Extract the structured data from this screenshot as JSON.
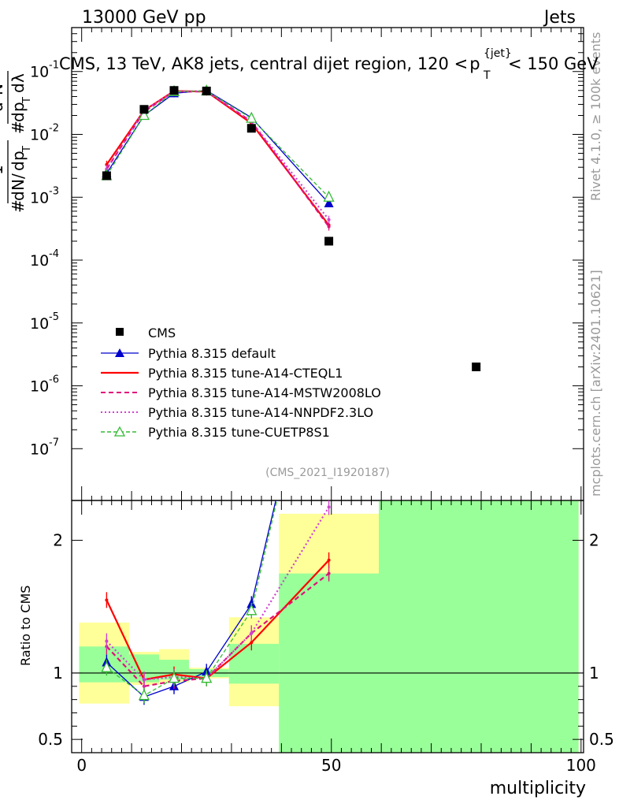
{
  "header": {
    "left": "13000 GeV pp",
    "right": "Jets"
  },
  "side_labels": {
    "rivet": "Rivet 4.1.0, ≥ 100k events",
    "mcplots": "mcplots.cern.ch [arXiv:2401.10621]"
  },
  "chart_data": {
    "type": "line",
    "title": "CMS, 13 TeV, AK8 jets, central dijet region, 120 < pT{jet} < 150 GeV",
    "title_main": "CMS, 13 TeV, AK8 jets, central dijet region, 120 <",
    "title_p": "p",
    "title_sub": "T",
    "title_sup": "{jet}",
    "title_end": "< 150 GeV",
    "analysis_id": "(CMS_2021_I1920187)",
    "xlabel": "multiplicity",
    "ylabel_main": "1/dN/dpT  dN/(dpT dλ)",
    "ylabel_ratio": "Ratio to CMS",
    "xlim": [
      -2,
      100.5
    ],
    "ylim": [
      1.5e-08,
      0.5
    ],
    "yscale": "log",
    "ratio_ylim": [
      0.4,
      2.3
    ],
    "x_ticks": [
      "0",
      "50",
      "100"
    ],
    "y_tick_exponents": [
      "-1",
      "-2",
      "-3",
      "-4",
      "-5",
      "-6",
      "-7"
    ],
    "ratio_ticks": [
      "0.5",
      "1",
      "2"
    ],
    "data": {
      "name": "CMS",
      "x": [
        5,
        12.5,
        18.5,
        25,
        34,
        49.5,
        79
      ],
      "y": [
        0.0022,
        0.025,
        0.05,
        0.049,
        0.0125,
        0.0002,
        2e-06
      ]
    },
    "series": [
      {
        "name": "Pythia 8.315 default",
        "color": "#0000cc",
        "style": "solid",
        "marker": "triangle-filled",
        "x": [
          5,
          12.5,
          18.5,
          25,
          34,
          49.5
        ],
        "y": [
          0.0024,
          0.02,
          0.045,
          0.05,
          0.0185,
          0.0008
        ],
        "ratio": [
          1.08,
          0.82,
          0.9,
          1.01,
          1.52,
          4.0
        ]
      },
      {
        "name": "Pythia 8.315 tune-A14-CTEQL1",
        "color": "#ff0000",
        "style": "solid",
        "marker": "none",
        "x": [
          5,
          12.5,
          18.5,
          25,
          34,
          49.5
        ],
        "y": [
          0.0033,
          0.024,
          0.049,
          0.048,
          0.015,
          0.00036
        ],
        "ratio": [
          1.55,
          0.95,
          0.99,
          0.96,
          1.23,
          1.85
        ]
      },
      {
        "name": "Pythia 8.315 tune-A14-MSTW2008LO",
        "color": "#e0107a",
        "style": "dashed",
        "marker": "none",
        "x": [
          5,
          12.5,
          18.5,
          25,
          34,
          49.5
        ],
        "y": [
          0.0028,
          0.023,
          0.048,
          0.048,
          0.016,
          0.00034
        ],
        "ratio": [
          1.2,
          0.9,
          0.94,
          0.96,
          1.3,
          1.75
        ]
      },
      {
        "name": "Pythia 8.315 tune-A14-NNPDF2.3LO",
        "color": "#d040d0",
        "style": "dotted",
        "marker": "none",
        "x": [
          5,
          12.5,
          18.5,
          25,
          34,
          49.5
        ],
        "y": [
          0.0028,
          0.024,
          0.048,
          0.049,
          0.016,
          0.00044
        ],
        "ratio": [
          1.24,
          0.95,
          0.97,
          0.96,
          1.3,
          2.25
        ]
      },
      {
        "name": "Pythia 8.315 tune-CUETP8S1",
        "color": "#33bb33",
        "style": "dashed",
        "marker": "triangle-open",
        "x": [
          5,
          12.5,
          18.5,
          25,
          34,
          49.5
        ],
        "y": [
          0.0022,
          0.02,
          0.048,
          0.049,
          0.018,
          0.001
        ],
        "ratio": [
          1.04,
          0.83,
          0.96,
          0.96,
          1.47,
          4.0
        ]
      }
    ],
    "ratio_bands": [
      {
        "x0": -0.5,
        "x1": 9.5,
        "y_lo": 0.77,
        "y_hi": 1.38,
        "in_lo": 0.93,
        "in_hi": 1.2
      },
      {
        "x0": 9.5,
        "x1": 15.5,
        "y_lo": 0.91,
        "y_hi": 1.16,
        "in_lo": 0.93,
        "in_hi": 1.14
      },
      {
        "x0": 15.5,
        "x1": 21.5,
        "y_lo": 0.93,
        "y_hi": 1.18,
        "in_lo": 0.95,
        "in_hi": 1.1
      },
      {
        "x0": 21.5,
        "x1": 29.5,
        "y_lo": 0.96,
        "y_hi": 1.04,
        "in_lo": 0.97,
        "in_hi": 1.03
      },
      {
        "x0": 29.5,
        "x1": 39.5,
        "y_lo": 0.75,
        "y_hi": 1.42,
        "in_lo": 0.92,
        "in_hi": 1.22
      },
      {
        "x0": 39.5,
        "x1": 59.5,
        "y_lo": 0.0,
        "y_hi": 2.2,
        "in_lo": 0.0,
        "in_hi": 1.75
      },
      {
        "x0": 59.5,
        "x1": 99.5,
        "y_lo": 0.0,
        "y_hi": 9.0,
        "in_lo": 0.0,
        "in_hi": 9.0
      }
    ]
  }
}
